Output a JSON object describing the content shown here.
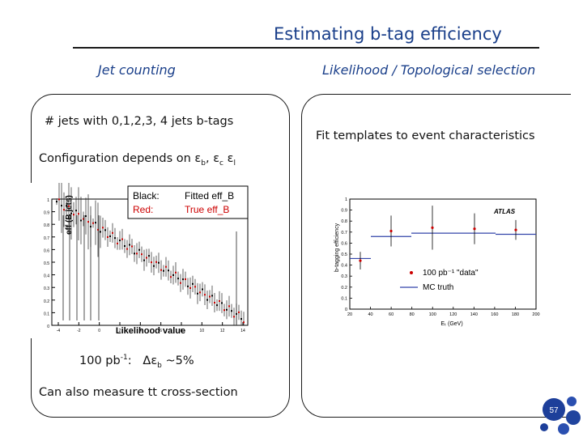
{
  "slide": {
    "title": "Estimating b-tag efficiency",
    "left_heading": "Jet counting",
    "right_heading": "Likelihood / Topological selection",
    "left_lines": {
      "line1": "# jets with 0,1,2,3, 4 jets b-tags",
      "line2": "Configuration depends on εb, εc εl",
      "line3": "100 pb-1:   Δεb ~5%",
      "line4": "Can also measure tt cross-section"
    },
    "right_lines": {
      "line1": "Fit templates to event characteristics"
    },
    "page_number": "57"
  },
  "left_plot": {
    "ylabel": "eff (B jets)",
    "xlabel": "Likelihood value",
    "legend": {
      "black_label": "Black:",
      "black_text": "Fitted eff_B",
      "red_label": "Red:",
      "red_text": "True eff_B"
    },
    "y_ticks": [
      "1",
      "0.9",
      "0.8",
      "0.7",
      "0.6",
      "0.5",
      "0.4",
      "0.3",
      "0.2",
      "0.1",
      "0"
    ],
    "x_ticks": [
      "-4",
      "-2",
      "0",
      "2",
      "4",
      "6",
      "8",
      "10",
      "12",
      "14"
    ]
  },
  "right_plot": {
    "ylabel": "b-tagging efficiency",
    "xlabel": "Eₜ (GeV)",
    "brand": "ATLAS",
    "legend_data": "100 pb⁻¹ \"data\"",
    "legend_mc": "MC truth",
    "y_ticks": [
      "1",
      "0.9",
      "0.8",
      "0.7",
      "0.6",
      "0.5",
      "0.4",
      "0.3",
      "0.2",
      "0.1",
      "0"
    ],
    "x_ticks": [
      "20",
      "40",
      "60",
      "80",
      "100",
      "120",
      "140",
      "160",
      "180",
      "200"
    ]
  },
  "colors": {
    "title": "#1a3f8a",
    "heading": "#1a3f8a",
    "red": "#cc0000",
    "blue": "#3344aa"
  }
}
